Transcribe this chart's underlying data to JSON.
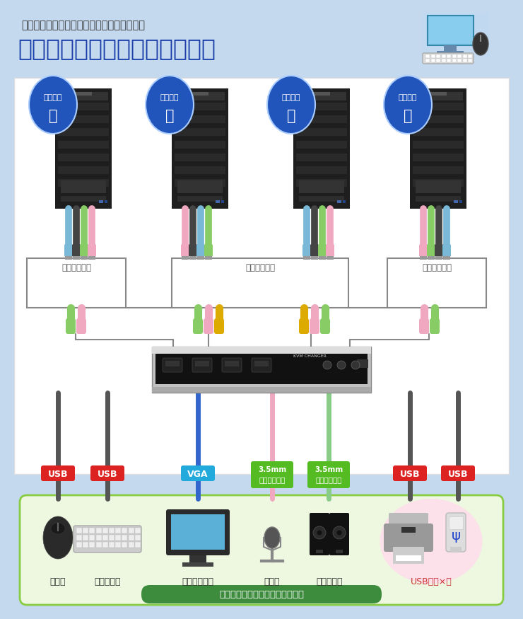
{
  "bg_color": "#c5d9ee",
  "white_panel_color": "#ffffff",
  "light_panel_color": "#eef7e0",
  "title_line1": "１組のキーボード・マウス・ディスプレイを",
  "title_line2": "４台のパソコンで切替・共有！",
  "title_line1_color": "#333333",
  "title_line2_color": "#1a3faa",
  "pc_badge_color": "#2255bb",
  "pc_badge_text_color": "#ffffff",
  "pc_numbers": [
    "１",
    "２",
    "３",
    "４"
  ],
  "cable_label": "付属ケーブル",
  "cable_label_color": "#555555",
  "device_labels": [
    "マウス",
    "キーボード",
    "ディスプレイ",
    "マイク",
    "スピーカー",
    "USBハブ×２"
  ],
  "device_label_usb_hub_color": "#cc3333",
  "device_label_color": "#333333",
  "connector_tags": [
    "USB",
    "USB",
    "VGA",
    "3.5mm\nステレオミニ",
    "3.5mm\nステレオミニ",
    "USB",
    "USB"
  ],
  "tag_colors": [
    "#dd2222",
    "#dd2222",
    "#22aadd",
    "#55bb22",
    "#55bb22",
    "#dd2222",
    "#dd2222"
  ],
  "shared_label": "４台のパソコンで共有できる機器",
  "shared_label_bg": "#3d8c3d",
  "shared_label_color": "#ffffff"
}
